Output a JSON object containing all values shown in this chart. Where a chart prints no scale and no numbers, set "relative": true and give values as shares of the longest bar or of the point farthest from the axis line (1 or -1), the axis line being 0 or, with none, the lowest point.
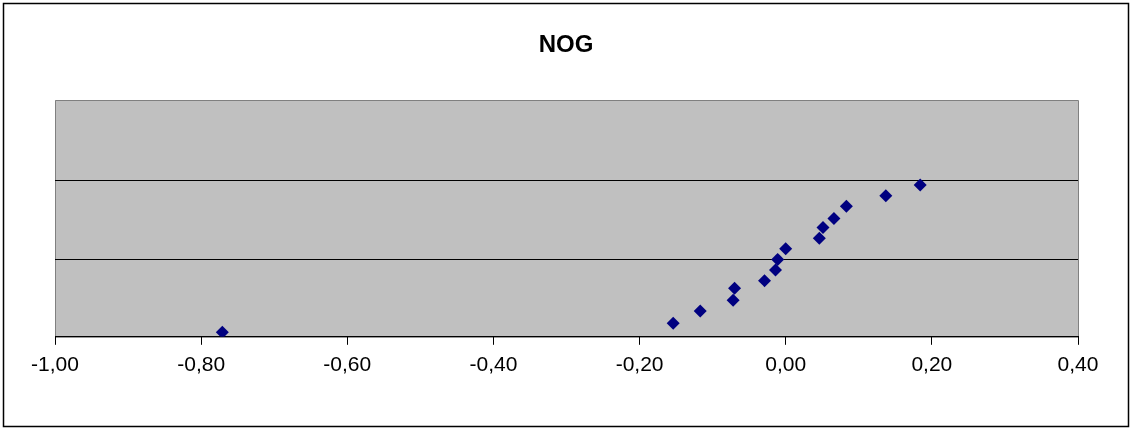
{
  "chart_data": {
    "type": "scatter",
    "title": "NOG",
    "relative": true,
    "marker": "diamond",
    "x": [
      -0.771,
      -0.154,
      -0.117,
      -0.072,
      -0.07,
      -0.029,
      -0.014,
      -0.011,
      0.0,
      0.046,
      0.051,
      0.066,
      0.083,
      0.137,
      0.184
    ],
    "series": [
      {
        "color": "#000080",
        "values": [
          0.03,
          0.09,
          0.17,
          0.24,
          0.32,
          0.37,
          0.44,
          0.51,
          0.58,
          0.65,
          0.72,
          0.78,
          0.86,
          0.93,
          1
        ]
      }
    ],
    "xlim": [
      -1,
      0.4
    ],
    "ref_lines": [
      {
        "axis": "y",
        "value": 0.51,
        "color": "#000000"
      },
      {
        "axis": "y",
        "value": 1.03,
        "color": "#000000"
      }
    ],
    "xticks": [
      {
        "value": -1,
        "label": "-1,00"
      },
      {
        "value": -0.8,
        "label": "-0,80"
      },
      {
        "value": -0.6,
        "label": "-0,60"
      },
      {
        "value": -0.4,
        "label": "-0,40"
      },
      {
        "value": -0.2,
        "label": "-0,20"
      },
      {
        "value": 0,
        "label": "0,00"
      },
      {
        "value": 0.2,
        "label": "0,20"
      },
      {
        "value": 0.4,
        "label": "0,40"
      }
    ]
  }
}
